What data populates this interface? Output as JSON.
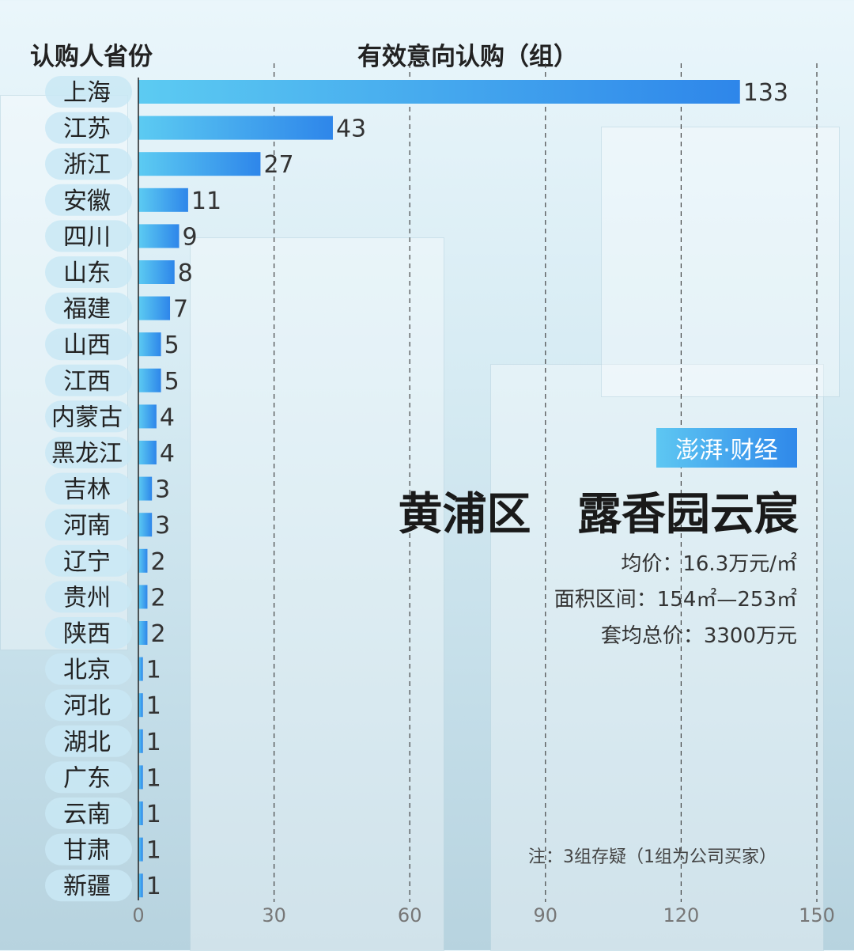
{
  "header": {
    "left_label": "认购人省份",
    "center_label": "有效意向认购（组）"
  },
  "logo": {
    "text": "澎湃·财经"
  },
  "project": {
    "title": "黄浦区   露香园云宸",
    "avg_price": "均价：16.3万元/㎡",
    "area_range": "面积区间：154㎡—253㎡",
    "avg_total": "套均总价：3300万元"
  },
  "note": "注：3组存疑（1组为公司买家）",
  "colors": {
    "bar_start": "#5ccbf2",
    "bar_end": "#2e86ea",
    "label_pill": "#c9e8f5"
  },
  "chart_data": {
    "type": "bar",
    "orientation": "horizontal",
    "categories": [
      "上海",
      "江苏",
      "浙江",
      "安徽",
      "四川",
      "山东",
      "福建",
      "山西",
      "江西",
      "内蒙古",
      "黑龙江",
      "吉林",
      "河南",
      "辽宁",
      "贵州",
      "陕西",
      "北京",
      "河北",
      "湖北",
      "广东",
      "云南",
      "甘肃",
      "新疆"
    ],
    "values": [
      133,
      43,
      27,
      11,
      9,
      8,
      7,
      5,
      5,
      4,
      4,
      3,
      3,
      2,
      2,
      2,
      1,
      1,
      1,
      1,
      1,
      1,
      1
    ],
    "xlim": [
      0,
      150
    ],
    "xticks": [
      0,
      30,
      60,
      90,
      120,
      150
    ],
    "grid": "vertical dashed",
    "data_labels": true
  }
}
